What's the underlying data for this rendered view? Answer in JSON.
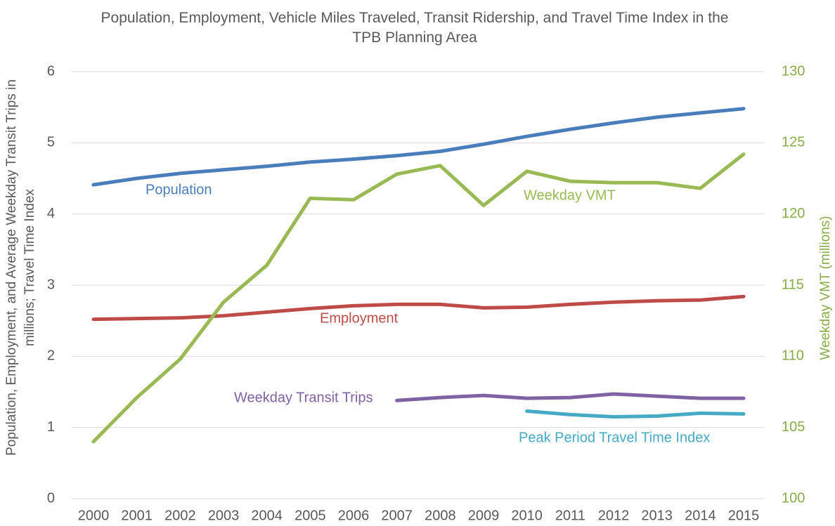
{
  "chart_data": {
    "type": "line",
    "title": "Population, Employment, Vehicle Miles Traveled, Transit Ridership, and Travel Time Index in the TPB Planning Area",
    "ylabel": "Population, Employment, and Average Weekday Transit Trips in millions; Travel Time Index",
    "y2label": "Weekday VMT (millions)",
    "categories": [
      "2000",
      "2001",
      "2002",
      "2003",
      "2004",
      "2005",
      "2006",
      "2007",
      "2008",
      "2009",
      "2010",
      "2011",
      "2012",
      "2013",
      "2014",
      "2015"
    ],
    "ylim": [
      0,
      6
    ],
    "yticks": [
      0,
      1,
      2,
      3,
      4,
      5,
      6
    ],
    "y2lim": [
      100,
      130
    ],
    "y2ticks": [
      100,
      105,
      110,
      115,
      120,
      125,
      130
    ],
    "y2color": "#8aab4a",
    "grid": true,
    "series": [
      {
        "name": "Population",
        "color": "#4a7ebb",
        "values": [
          4.41,
          4.5,
          4.57,
          4.62,
          4.67,
          4.73,
          4.77,
          4.82,
          4.88,
          4.98,
          5.09,
          5.19,
          5.28,
          5.36,
          5.42,
          5.48
        ]
      },
      {
        "name": "Employment",
        "color": "#be4b48",
        "values": [
          2.52,
          2.53,
          2.54,
          2.57,
          2.62,
          2.67,
          2.71,
          2.73,
          2.73,
          2.68,
          2.69,
          2.73,
          2.76,
          2.78,
          2.79,
          2.84
        ]
      },
      {
        "name": "Weekday VMT",
        "color": "#98b954",
        "axis": "y2",
        "values": [
          104.0,
          107.1,
          109.8,
          113.8,
          116.4,
          121.1,
          121.0,
          122.8,
          123.4,
          120.6,
          123.0,
          122.3,
          122.2,
          122.2,
          121.8,
          124.2
        ]
      },
      {
        "name": "Weekday Transit Trips",
        "color": "#7e62a1",
        "values": [
          null,
          null,
          null,
          null,
          null,
          null,
          null,
          1.38,
          1.42,
          1.45,
          1.41,
          1.42,
          1.47,
          1.44,
          1.41,
          1.41
        ]
      },
      {
        "name": "Peak Period Travel Time Index",
        "color": "#46aac5",
        "values": [
          null,
          null,
          null,
          null,
          null,
          null,
          null,
          null,
          null,
          null,
          1.23,
          1.18,
          1.15,
          1.16,
          1.2,
          1.19
        ]
      }
    ]
  }
}
